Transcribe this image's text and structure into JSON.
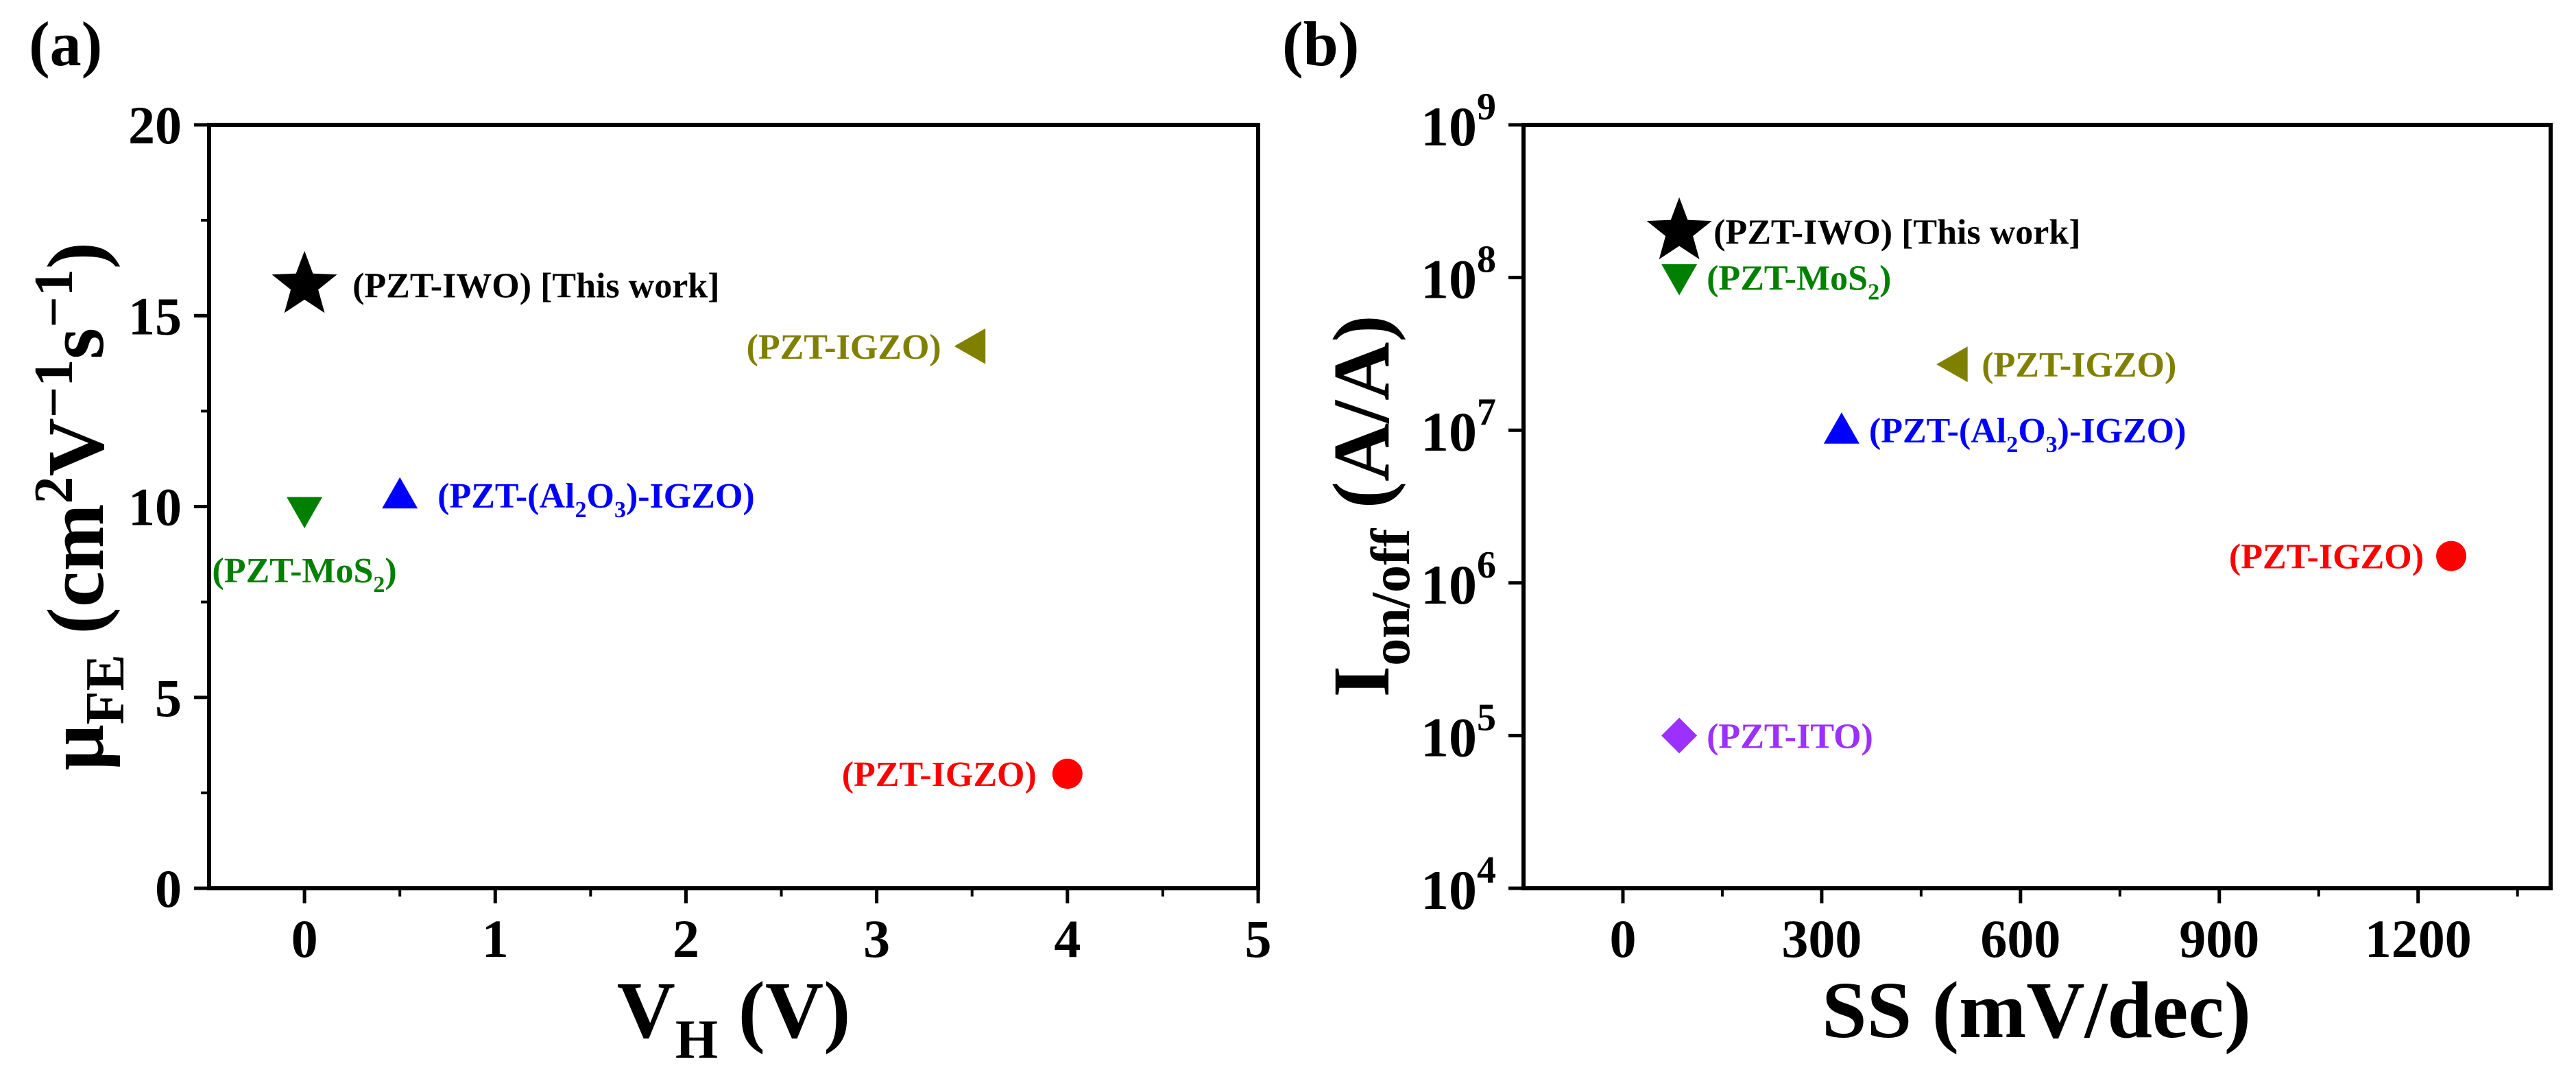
{
  "chart_data": [
    {
      "panel_label": "(a)",
      "type": "scatter",
      "title": "",
      "xlabel": {
        "main": "V",
        "sub": "H",
        "rest": " (V)"
      },
      "ylabel": {
        "main": "μ",
        "sub": "FE",
        "rest": " (cm",
        "sup1": "2",
        "mid": "V",
        "sup2": "−1",
        "mid2": "s",
        "sup3": "−1",
        "end": ")"
      },
      "xlim": [
        -0.5,
        5
      ],
      "ylim": [
        0,
        20
      ],
      "xticks": [
        0,
        1,
        2,
        3,
        4,
        5
      ],
      "xtick_labels": [
        "0",
        "1",
        "2",
        "3",
        "4",
        "5"
      ],
      "yticks": [
        0,
        5,
        10,
        15,
        20
      ],
      "ytick_labels": [
        "0",
        "5",
        "10",
        "15",
        "20"
      ],
      "points": [
        {
          "x": 0,
          "y": 15.8,
          "marker": "star",
          "color": "#000000",
          "label": "(PZT-IWO) [This work]",
          "label_side": "right"
        },
        {
          "x": 3.5,
          "y": 14.2,
          "marker": "triangle-left",
          "color": "#808000",
          "label": "(PZT-IGZO)",
          "label_side": "left"
        },
        {
          "x": 0,
          "y": 9.9,
          "marker": "triangle-down",
          "color": "#008000",
          "label": "(PZT-MoS",
          "label_sub": "2",
          "label_tail": ")",
          "label_side": "below"
        },
        {
          "x": 0.5,
          "y": 10.3,
          "marker": "triangle-up",
          "color": "#0000ff",
          "label": "(PZT-(Al",
          "label_parts": [
            [
              "(PZT-(Al",
              ""
            ],
            [
              "2",
              "sub"
            ],
            [
              "O",
              ""
            ],
            [
              "3",
              "sub"
            ],
            [
              ")-IGZO)",
              ""
            ]
          ],
          "label_side": "right"
        },
        {
          "x": 4,
          "y": 3.0,
          "marker": "circle",
          "color": "#ff0000",
          "label": "(PZT-IGZO)",
          "label_side": "left"
        }
      ]
    },
    {
      "panel_label": "(b)",
      "type": "scatter",
      "title": "",
      "xlabel": {
        "main": "SS (mV/dec)"
      },
      "ylabel": {
        "main": "I",
        "sub": "on/off",
        "rest": " (A/A)"
      },
      "xlim": [
        -150,
        1400
      ],
      "ylim_log10": [
        4,
        9
      ],
      "yscale": "log",
      "xticks": [
        0,
        300,
        600,
        900,
        1200
      ],
      "xtick_labels": [
        "0",
        "300",
        "600",
        "900",
        "1200"
      ],
      "yticks_exp": [
        4,
        5,
        6,
        7,
        8,
        9
      ],
      "ytick_base": "10",
      "ytick_exps": [
        "4",
        "5",
        "6",
        "7",
        "8",
        "9"
      ],
      "points": [
        {
          "x": 85,
          "y": 200000000,
          "marker": "star",
          "color": "#000000",
          "label": "(PZT-IWO) [This work]",
          "label_side": "right"
        },
        {
          "x": 85,
          "y": 100000000,
          "marker": "triangle-down",
          "color": "#008000",
          "label": "(PZT-MoS",
          "label_sub": "2",
          "label_tail": ")",
          "label_side": "right"
        },
        {
          "x": 500,
          "y": 27000000,
          "marker": "triangle-left",
          "color": "#808000",
          "label": "(PZT-IGZO)",
          "label_side": "right"
        },
        {
          "x": 330,
          "y": 10000000,
          "marker": "triangle-up",
          "color": "#0000ff",
          "label": "(PZT-(Al",
          "label_parts": [
            [
              "(PZT-(Al",
              ""
            ],
            [
              "2",
              "sub"
            ],
            [
              "O",
              ""
            ],
            [
              "3",
              "sub"
            ],
            [
              ")-IGZO)",
              ""
            ]
          ],
          "label_side": "right"
        },
        {
          "x": 1250,
          "y": 1500000,
          "marker": "circle",
          "color": "#ff0000",
          "label": "(PZT-IGZO)",
          "label_side": "left"
        },
        {
          "x": 85,
          "y": 100000,
          "marker": "diamond",
          "color": "#9b30ff",
          "label": "(PZT-ITO)",
          "label_side": "right"
        }
      ]
    }
  ]
}
